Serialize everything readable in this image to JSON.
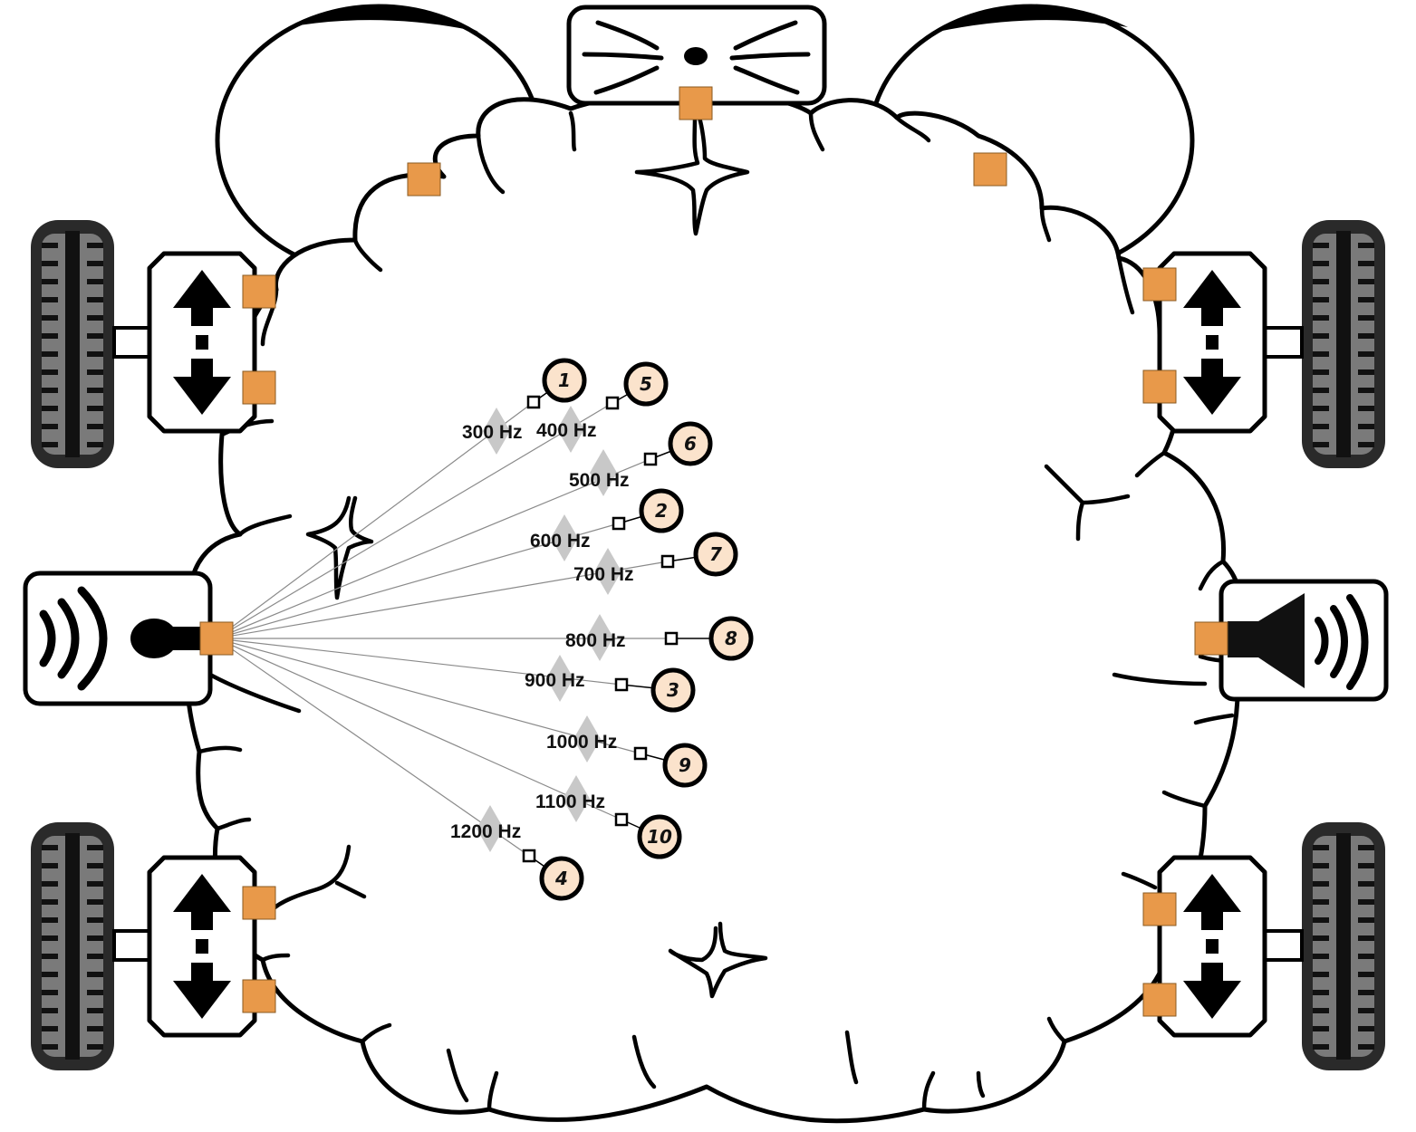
{
  "colors": {
    "port": "#e8994a",
    "node_fill": "#fbe3cc",
    "diamond": "#c8c8c8",
    "connection": "#8a8a8a",
    "tire": "#7a7a7a"
  },
  "icons": {
    "microphone": "microphone-icon",
    "speaker": "speaker-icon",
    "eye": "eye-icon",
    "nose": "nose-icon",
    "wheel": "wheel-icon",
    "motor": "motor-arrows-icon"
  },
  "frequency_nodes": [
    {
      "label": "300 Hz",
      "number": "1"
    },
    {
      "label": "400 Hz",
      "number": "5"
    },
    {
      "label": "500 Hz",
      "number": "6"
    },
    {
      "label": "600 Hz",
      "number": "2"
    },
    {
      "label": "700 Hz",
      "number": "7"
    },
    {
      "label": "800 Hz",
      "number": "8"
    },
    {
      "label": "900 Hz",
      "number": "3"
    },
    {
      "label": "1000 Hz",
      "number": "9"
    },
    {
      "label": "1100 Hz",
      "number": "10"
    },
    {
      "label": "1200 Hz",
      "number": "4"
    }
  ]
}
